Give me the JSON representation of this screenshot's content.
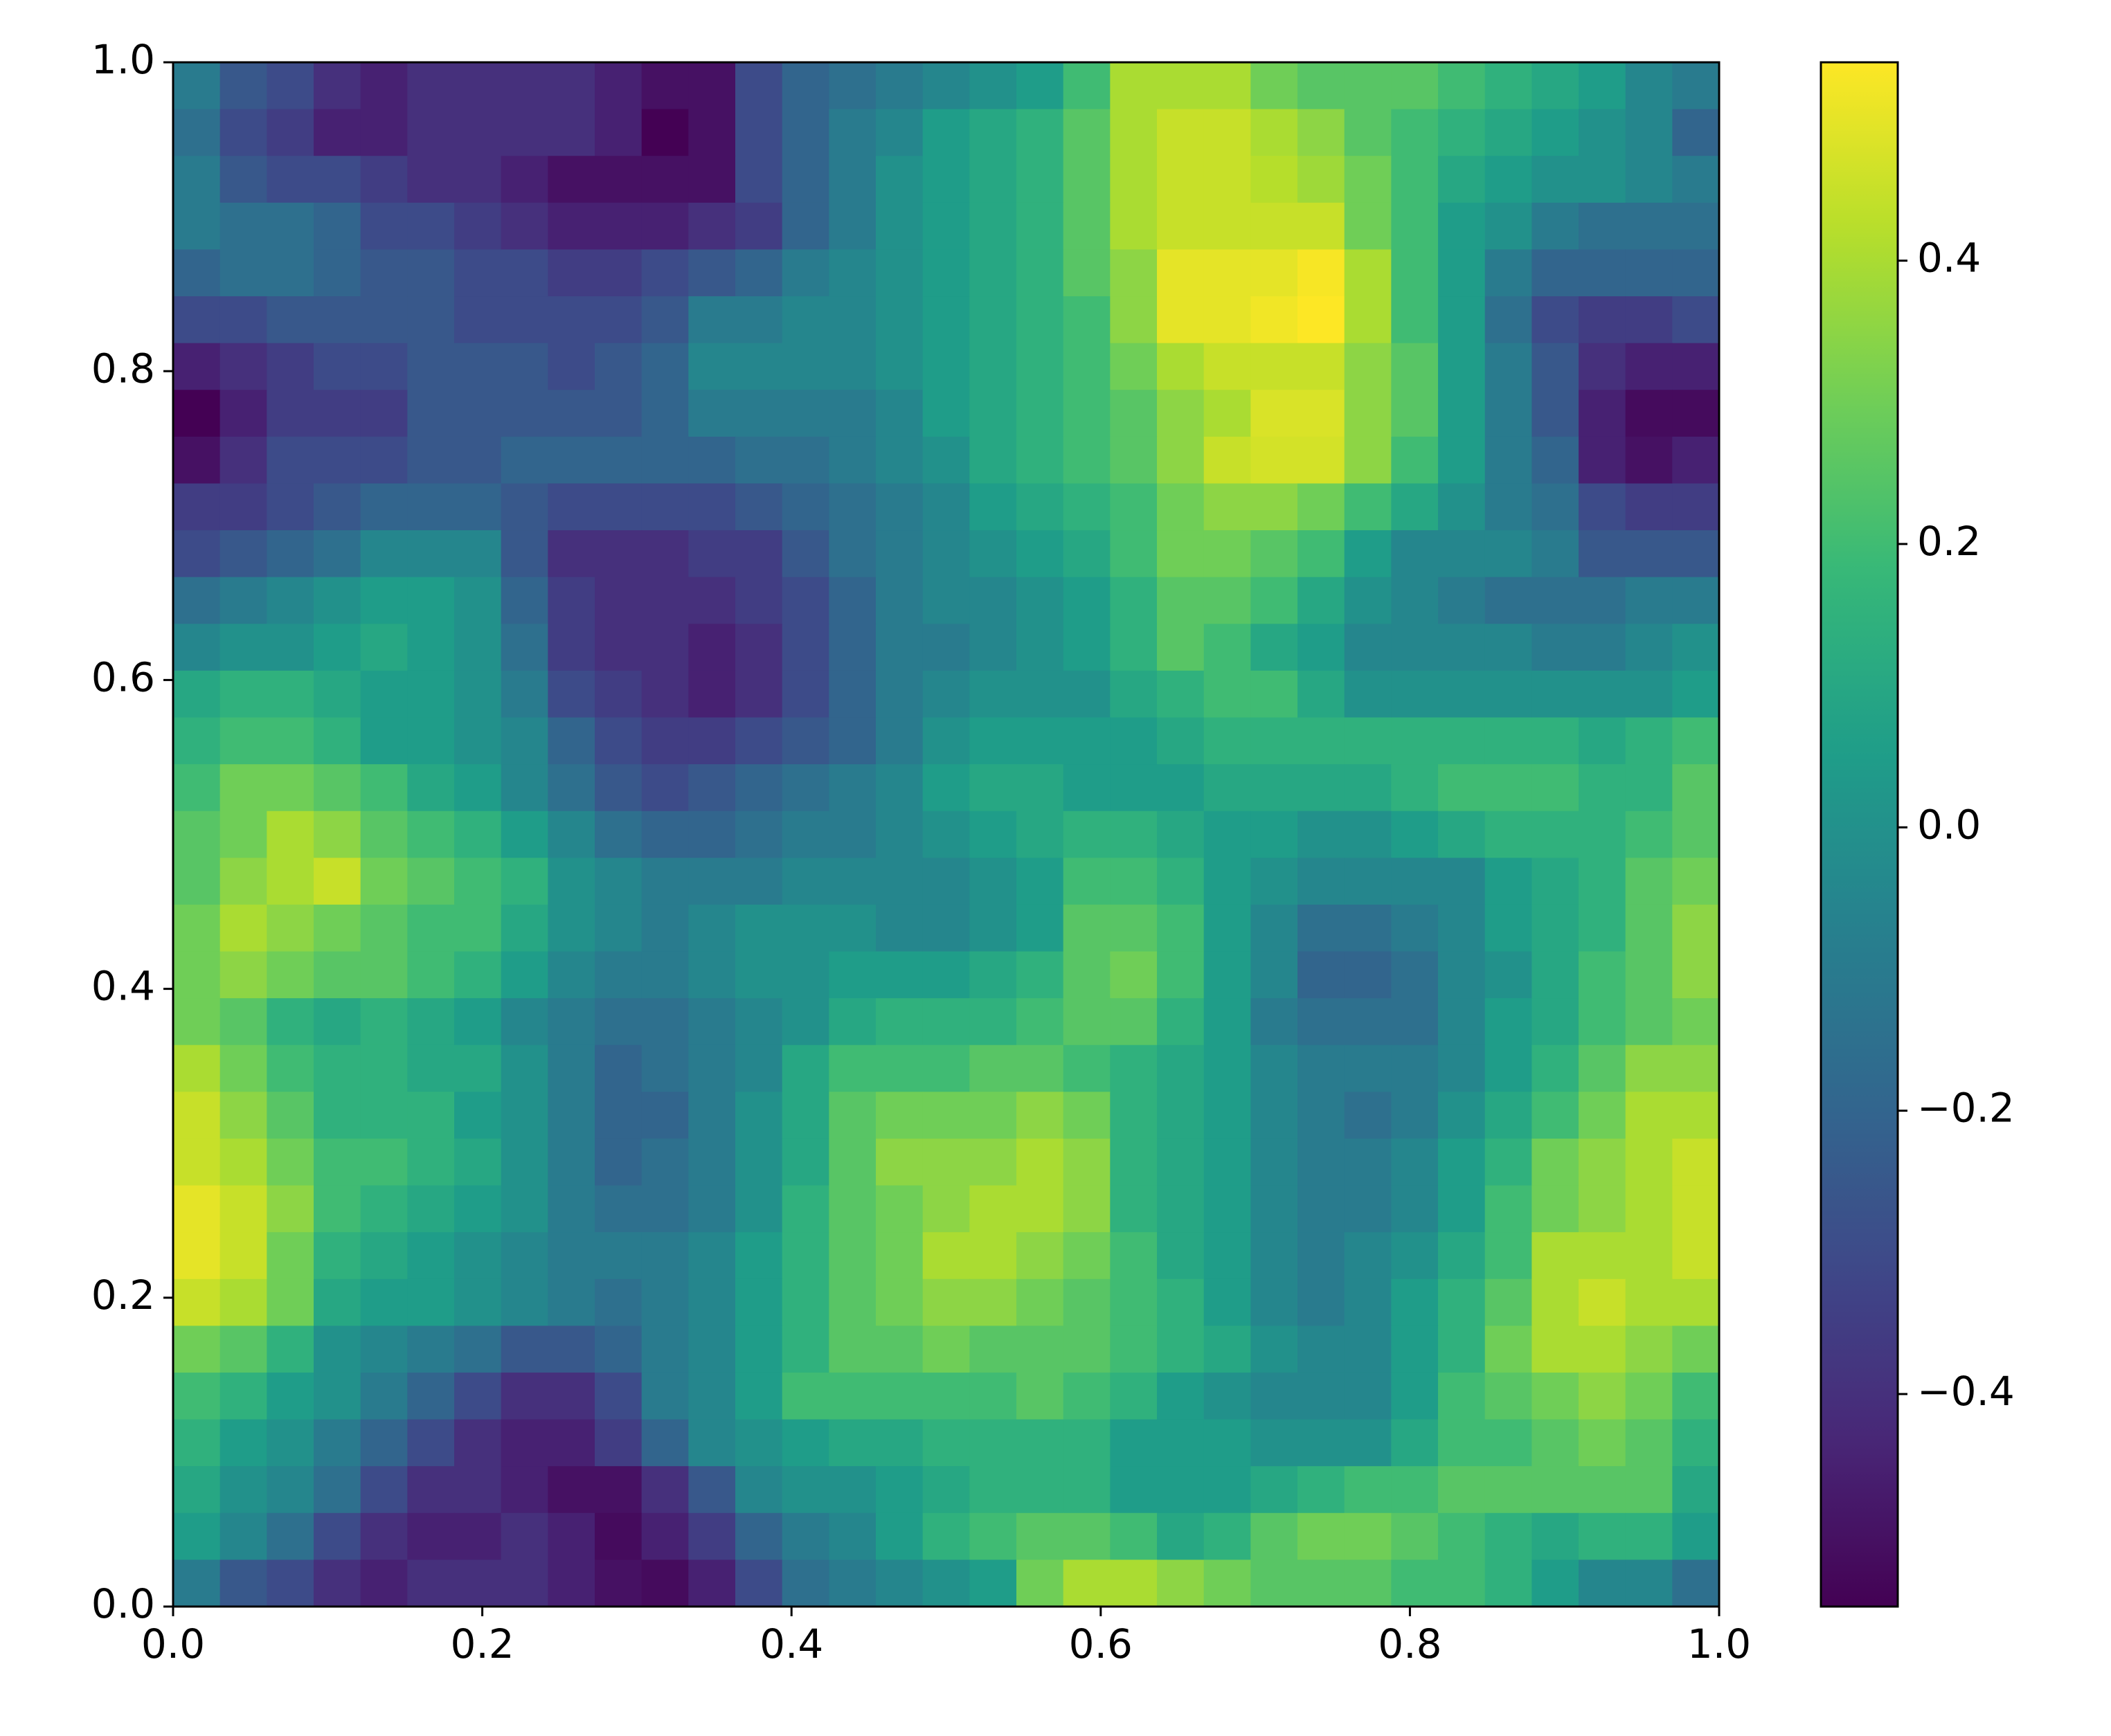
{
  "chart_data": {
    "type": "heatmap",
    "colormap": "viridis",
    "xlim": [
      0,
      1
    ],
    "ylim": [
      0,
      1
    ],
    "xticks": [
      {
        "value": 0,
        "label": "0.0"
      },
      0.2,
      0.4,
      0.6,
      0.8,
      {
        "value": 1,
        "label": "1.0"
      }
    ],
    "yticks": [
      {
        "value": 0,
        "label": "0.0"
      },
      0.2,
      0.4,
      0.6,
      0.8,
      {
        "value": 1,
        "label": "1.0"
      }
    ],
    "clim": [
      -0.55,
      0.54
    ],
    "cticks": [
      {
        "value": -0.4,
        "label": "−0.4"
      },
      {
        "value": -0.2,
        "label": "−0.2"
      },
      {
        "value": 0,
        "label": "0.0"
      },
      0.2,
      0.4
    ],
    "values": [
      [
        -0.1,
        -0.25,
        -0.3,
        -0.4,
        -0.45,
        -0.4,
        -0.4,
        -0.4,
        -0.4,
        -0.45,
        -0.5,
        -0.5,
        -0.3,
        -0.2,
        -0.15,
        -0.1,
        -0.05,
        0,
        0.05,
        0.2,
        0.4,
        0.4,
        0.4,
        0.3,
        0.25,
        0.25,
        0.25,
        0.2,
        0.15,
        0.1,
        0.05,
        -0.05,
        -0.1
      ],
      [
        -0.15,
        -0.3,
        -0.35,
        -0.45,
        -0.45,
        -0.4,
        -0.4,
        -0.4,
        -0.4,
        -0.45,
        -0.55,
        -0.5,
        -0.3,
        -0.2,
        -0.1,
        -0.05,
        0.05,
        0.1,
        0.15,
        0.25,
        0.4,
        0.45,
        0.45,
        0.4,
        0.35,
        0.25,
        0.2,
        0.15,
        0.1,
        0.05,
        0,
        -0.05,
        -0.2
      ],
      [
        -0.1,
        -0.25,
        -0.3,
        -0.3,
        -0.35,
        -0.4,
        -0.4,
        -0.45,
        -0.5,
        -0.5,
        -0.5,
        -0.5,
        -0.3,
        -0.2,
        -0.1,
        0,
        0.05,
        0.1,
        0.15,
        0.25,
        0.4,
        0.45,
        0.45,
        0.42,
        0.38,
        0.3,
        0.2,
        0.1,
        0.05,
        0,
        0,
        -0.05,
        -0.1
      ],
      [
        -0.1,
        -0.15,
        -0.15,
        -0.2,
        -0.3,
        -0.3,
        -0.35,
        -0.4,
        -0.45,
        -0.45,
        -0.45,
        -0.4,
        -0.35,
        -0.2,
        -0.1,
        0,
        0.05,
        0.1,
        0.15,
        0.25,
        0.4,
        0.45,
        0.45,
        0.45,
        0.45,
        0.3,
        0.2,
        0.05,
        0,
        -0.1,
        -0.15,
        -0.15,
        -0.15
      ],
      [
        -0.2,
        -0.15,
        -0.15,
        -0.2,
        -0.25,
        -0.25,
        -0.3,
        -0.3,
        -0.35,
        -0.35,
        -0.3,
        -0.25,
        -0.2,
        -0.1,
        -0.05,
        0,
        0.05,
        0.1,
        0.15,
        0.25,
        0.35,
        0.5,
        0.5,
        0.5,
        0.53,
        0.4,
        0.2,
        0.05,
        -0.1,
        -0.2,
        -0.2,
        -0.2,
        -0.2
      ],
      [
        -0.3,
        -0.3,
        -0.25,
        -0.25,
        -0.25,
        -0.25,
        -0.3,
        -0.3,
        -0.3,
        -0.3,
        -0.25,
        -0.1,
        -0.1,
        -0.05,
        -0.05,
        0,
        0.05,
        0.1,
        0.15,
        0.2,
        0.35,
        0.5,
        0.5,
        0.52,
        0.54,
        0.4,
        0.2,
        0.05,
        -0.15,
        -0.3,
        -0.35,
        -0.35,
        -0.3
      ],
      [
        -0.45,
        -0.4,
        -0.35,
        -0.3,
        -0.3,
        -0.25,
        -0.25,
        -0.25,
        -0.3,
        -0.25,
        -0.2,
        -0.05,
        -0.05,
        -0.05,
        -0.05,
        0,
        0.05,
        0.1,
        0.15,
        0.2,
        0.3,
        0.4,
        0.45,
        0.45,
        0.45,
        0.35,
        0.25,
        0.05,
        -0.1,
        -0.25,
        -0.4,
        -0.45,
        -0.45
      ],
      [
        -0.55,
        -0.45,
        -0.35,
        -0.35,
        -0.35,
        -0.25,
        -0.25,
        -0.25,
        -0.25,
        -0.25,
        -0.2,
        -0.1,
        -0.1,
        -0.1,
        -0.1,
        -0.05,
        0.05,
        0.1,
        0.15,
        0.2,
        0.25,
        0.35,
        0.4,
        0.48,
        0.48,
        0.35,
        0.25,
        0.05,
        -0.1,
        -0.25,
        -0.45,
        -0.52,
        -0.52
      ],
      [
        -0.5,
        -0.4,
        -0.3,
        -0.3,
        -0.3,
        -0.25,
        -0.25,
        -0.2,
        -0.2,
        -0.2,
        -0.2,
        -0.2,
        -0.15,
        -0.15,
        -0.1,
        -0.05,
        0,
        0.1,
        0.15,
        0.2,
        0.25,
        0.35,
        0.45,
        0.47,
        0.47,
        0.35,
        0.2,
        0.05,
        -0.1,
        -0.2,
        -0.45,
        -0.5,
        -0.45
      ],
      [
        -0.35,
        -0.35,
        -0.3,
        -0.25,
        -0.2,
        -0.2,
        -0.2,
        -0.25,
        -0.3,
        -0.3,
        -0.3,
        -0.3,
        -0.25,
        -0.2,
        -0.15,
        -0.1,
        -0.05,
        0.05,
        0.1,
        0.15,
        0.2,
        0.3,
        0.35,
        0.35,
        0.3,
        0.2,
        0.1,
        0,
        -0.1,
        -0.15,
        -0.3,
        -0.35,
        -0.35
      ],
      [
        -0.3,
        -0.25,
        -0.2,
        -0.15,
        -0.05,
        -0.05,
        -0.05,
        -0.25,
        -0.4,
        -0.4,
        -0.4,
        -0.35,
        -0.35,
        -0.25,
        -0.15,
        -0.1,
        -0.05,
        0,
        0.05,
        0.1,
        0.2,
        0.3,
        0.3,
        0.25,
        0.2,
        0.05,
        -0.05,
        -0.05,
        -0.05,
        -0.1,
        -0.25,
        -0.25,
        -0.25
      ],
      [
        -0.15,
        -0.1,
        -0.05,
        0,
        0.05,
        0.05,
        0,
        -0.2,
        -0.35,
        -0.4,
        -0.4,
        -0.4,
        -0.35,
        -0.3,
        -0.2,
        -0.1,
        -0.05,
        -0.05,
        0,
        0.05,
        0.15,
        0.25,
        0.25,
        0.2,
        0.1,
        0,
        -0.05,
        -0.1,
        -0.15,
        -0.15,
        -0.15,
        -0.1,
        -0.1
      ],
      [
        -0.05,
        0,
        0,
        0.05,
        0.1,
        0.05,
        0,
        -0.15,
        -0.35,
        -0.4,
        -0.4,
        -0.45,
        -0.4,
        -0.3,
        -0.2,
        -0.1,
        -0.1,
        -0.05,
        0,
        0.05,
        0.15,
        0.25,
        0.2,
        0.1,
        0.05,
        -0.05,
        -0.05,
        -0.05,
        -0.05,
        -0.1,
        -0.1,
        -0.05,
        0
      ],
      [
        0.1,
        0.15,
        0.15,
        0.1,
        0.05,
        0.05,
        0,
        -0.1,
        -0.3,
        -0.35,
        -0.4,
        -0.45,
        -0.4,
        -0.3,
        -0.2,
        -0.1,
        -0.05,
        0,
        0,
        0,
        0.1,
        0.15,
        0.2,
        0.2,
        0.1,
        0,
        0,
        0,
        0,
        0,
        0,
        0,
        0.05
      ],
      [
        0.15,
        0.2,
        0.2,
        0.15,
        0.05,
        0.05,
        0,
        -0.05,
        -0.2,
        -0.3,
        -0.35,
        -0.35,
        -0.3,
        -0.25,
        -0.2,
        -0.1,
        0,
        0.05,
        0.05,
        0.05,
        0.05,
        0.1,
        0.15,
        0.15,
        0.15,
        0.15,
        0.15,
        0.15,
        0.15,
        0.15,
        0.1,
        0.15,
        0.2
      ],
      [
        0.2,
        0.3,
        0.3,
        0.25,
        0.2,
        0.1,
        0.05,
        -0.05,
        -0.15,
        -0.25,
        -0.3,
        -0.25,
        -0.2,
        -0.15,
        -0.1,
        -0.05,
        0.05,
        0.1,
        0.1,
        0.05,
        0.05,
        0.05,
        0.1,
        0.1,
        0.1,
        0.1,
        0.15,
        0.2,
        0.2,
        0.2,
        0.15,
        0.15,
        0.25
      ],
      [
        0.25,
        0.3,
        0.4,
        0.35,
        0.25,
        0.2,
        0.15,
        0.05,
        -0.05,
        -0.15,
        -0.2,
        -0.2,
        -0.15,
        -0.1,
        -0.1,
        -0.05,
        0,
        0.05,
        0.1,
        0.15,
        0.15,
        0.1,
        0.05,
        0.05,
        0,
        0,
        0.05,
        0.1,
        0.15,
        0.15,
        0.15,
        0.2,
        0.25
      ],
      [
        0.25,
        0.35,
        0.4,
        0.45,
        0.3,
        0.25,
        0.2,
        0.15,
        0,
        -0.05,
        -0.1,
        -0.1,
        -0.1,
        -0.05,
        -0.05,
        -0.05,
        -0.05,
        0,
        0.05,
        0.2,
        0.2,
        0.15,
        0.05,
        0,
        -0.05,
        -0.05,
        -0.05,
        -0.05,
        0.05,
        0.1,
        0.15,
        0.25,
        0.3
      ],
      [
        0.3,
        0.4,
        0.35,
        0.3,
        0.25,
        0.2,
        0.2,
        0.1,
        0,
        -0.05,
        -0.1,
        -0.05,
        0,
        0,
        0,
        -0.05,
        -0.05,
        0,
        0.05,
        0.25,
        0.25,
        0.2,
        0.05,
        -0.05,
        -0.15,
        -0.15,
        -0.1,
        -0.05,
        0.05,
        0.1,
        0.15,
        0.25,
        0.35
      ],
      [
        0.3,
        0.35,
        0.3,
        0.25,
        0.25,
        0.2,
        0.15,
        0.05,
        -0.05,
        -0.1,
        -0.1,
        -0.05,
        0,
        0,
        0.05,
        0.05,
        0.05,
        0.1,
        0.15,
        0.25,
        0.3,
        0.2,
        0.05,
        -0.05,
        -0.2,
        -0.2,
        -0.15,
        -0.05,
        0,
        0.1,
        0.2,
        0.25,
        0.35
      ],
      [
        0.3,
        0.25,
        0.15,
        0.1,
        0.15,
        0.1,
        0.05,
        -0.05,
        -0.1,
        -0.15,
        -0.15,
        -0.1,
        -0.05,
        0,
        0.1,
        0.15,
        0.15,
        0.15,
        0.2,
        0.25,
        0.25,
        0.15,
        0.05,
        -0.1,
        -0.15,
        -0.15,
        -0.15,
        -0.05,
        0.05,
        0.1,
        0.2,
        0.25,
        0.3
      ],
      [
        0.4,
        0.3,
        0.2,
        0.15,
        0.15,
        0.1,
        0.1,
        0,
        -0.1,
        -0.2,
        -0.15,
        -0.1,
        -0.05,
        0.1,
        0.2,
        0.2,
        0.2,
        0.25,
        0.25,
        0.2,
        0.15,
        0.1,
        0.05,
        -0.05,
        -0.1,
        -0.1,
        -0.1,
        -0.05,
        0.05,
        0.15,
        0.25,
        0.35,
        0.35
      ],
      [
        0.45,
        0.35,
        0.25,
        0.15,
        0.15,
        0.15,
        0.05,
        0,
        -0.1,
        -0.2,
        -0.2,
        -0.1,
        0,
        0.1,
        0.25,
        0.3,
        0.3,
        0.3,
        0.35,
        0.3,
        0.15,
        0.1,
        0.05,
        -0.05,
        -0.1,
        -0.15,
        -0.1,
        0,
        0.1,
        0.2,
        0.3,
        0.4,
        0.4
      ],
      [
        0.45,
        0.4,
        0.3,
        0.2,
        0.2,
        0.15,
        0.1,
        0,
        -0.1,
        -0.2,
        -0.15,
        -0.1,
        0,
        0.1,
        0.25,
        0.35,
        0.35,
        0.35,
        0.4,
        0.35,
        0.15,
        0.1,
        0.05,
        -0.05,
        -0.1,
        -0.1,
        -0.05,
        0.05,
        0.15,
        0.3,
        0.35,
        0.4,
        0.45
      ],
      [
        0.5,
        0.45,
        0.35,
        0.2,
        0.15,
        0.1,
        0.05,
        0,
        -0.1,
        -0.15,
        -0.15,
        -0.1,
        0,
        0.15,
        0.25,
        0.3,
        0.35,
        0.4,
        0.4,
        0.35,
        0.15,
        0.1,
        0.05,
        -0.05,
        -0.1,
        -0.1,
        -0.05,
        0.05,
        0.2,
        0.3,
        0.35,
        0.4,
        0.45
      ],
      [
        0.5,
        0.45,
        0.3,
        0.15,
        0.1,
        0.05,
        0,
        -0.05,
        -0.1,
        -0.1,
        -0.1,
        -0.05,
        0.05,
        0.15,
        0.25,
        0.3,
        0.4,
        0.4,
        0.35,
        0.3,
        0.2,
        0.1,
        0.05,
        -0.05,
        -0.1,
        -0.05,
        0,
        0.1,
        0.2,
        0.4,
        0.4,
        0.4,
        0.45
      ],
      [
        0.45,
        0.4,
        0.3,
        0.1,
        0.05,
        0.05,
        0,
        -0.05,
        -0.1,
        -0.15,
        -0.1,
        -0.05,
        0.05,
        0.15,
        0.25,
        0.3,
        0.35,
        0.35,
        0.3,
        0.25,
        0.2,
        0.15,
        0.05,
        -0.05,
        -0.1,
        -0.05,
        0.05,
        0.15,
        0.25,
        0.4,
        0.45,
        0.4,
        0.4
      ],
      [
        0.3,
        0.25,
        0.15,
        0,
        -0.05,
        -0.1,
        -0.15,
        -0.25,
        -0.25,
        -0.2,
        -0.1,
        -0.05,
        0.05,
        0.15,
        0.25,
        0.25,
        0.3,
        0.25,
        0.25,
        0.25,
        0.2,
        0.15,
        0.1,
        0,
        -0.05,
        -0.05,
        0.05,
        0.15,
        0.3,
        0.4,
        0.4,
        0.35,
        0.3
      ],
      [
        0.2,
        0.15,
        0.05,
        0,
        -0.1,
        -0.2,
        -0.3,
        -0.4,
        -0.4,
        -0.3,
        -0.1,
        -0.05,
        0.05,
        0.2,
        0.2,
        0.2,
        0.2,
        0.2,
        0.25,
        0.2,
        0.15,
        0.05,
        0,
        -0.05,
        -0.05,
        -0.05,
        0.05,
        0.2,
        0.25,
        0.3,
        0.35,
        0.3,
        0.2
      ],
      [
        0.15,
        0.05,
        0,
        -0.1,
        -0.2,
        -0.3,
        -0.4,
        -0.45,
        -0.45,
        -0.35,
        -0.2,
        -0.05,
        0,
        0.05,
        0.1,
        0.1,
        0.15,
        0.15,
        0.15,
        0.15,
        0.05,
        0.05,
        0.05,
        0,
        0,
        0,
        0.1,
        0.2,
        0.2,
        0.25,
        0.3,
        0.25,
        0.15
      ],
      [
        0.1,
        0,
        -0.05,
        -0.15,
        -0.3,
        -0.4,
        -0.4,
        -0.45,
        -0.5,
        -0.5,
        -0.4,
        -0.25,
        -0.05,
        0,
        0,
        0.05,
        0.1,
        0.15,
        0.15,
        0.15,
        0.05,
        0.05,
        0.05,
        0.1,
        0.15,
        0.2,
        0.2,
        0.25,
        0.25,
        0.25,
        0.25,
        0.25,
        0.1
      ],
      [
        0.05,
        -0.05,
        -0.15,
        -0.3,
        -0.4,
        -0.45,
        -0.45,
        -0.4,
        -0.45,
        -0.52,
        -0.45,
        -0.35,
        -0.2,
        -0.1,
        -0.05,
        0.05,
        0.15,
        0.2,
        0.25,
        0.25,
        0.2,
        0.1,
        0.15,
        0.25,
        0.3,
        0.3,
        0.25,
        0.2,
        0.15,
        0.1,
        0.15,
        0.15,
        0.05
      ],
      [
        -0.1,
        -0.25,
        -0.3,
        -0.4,
        -0.45,
        -0.4,
        -0.4,
        -0.4,
        -0.45,
        -0.5,
        -0.52,
        -0.45,
        -0.3,
        -0.15,
        -0.1,
        -0.05,
        0,
        0.05,
        0.3,
        0.4,
        0.4,
        0.35,
        0.3,
        0.25,
        0.25,
        0.25,
        0.2,
        0.2,
        0.15,
        0.05,
        -0.05,
        -0.05,
        -0.15
      ]
    ]
  }
}
